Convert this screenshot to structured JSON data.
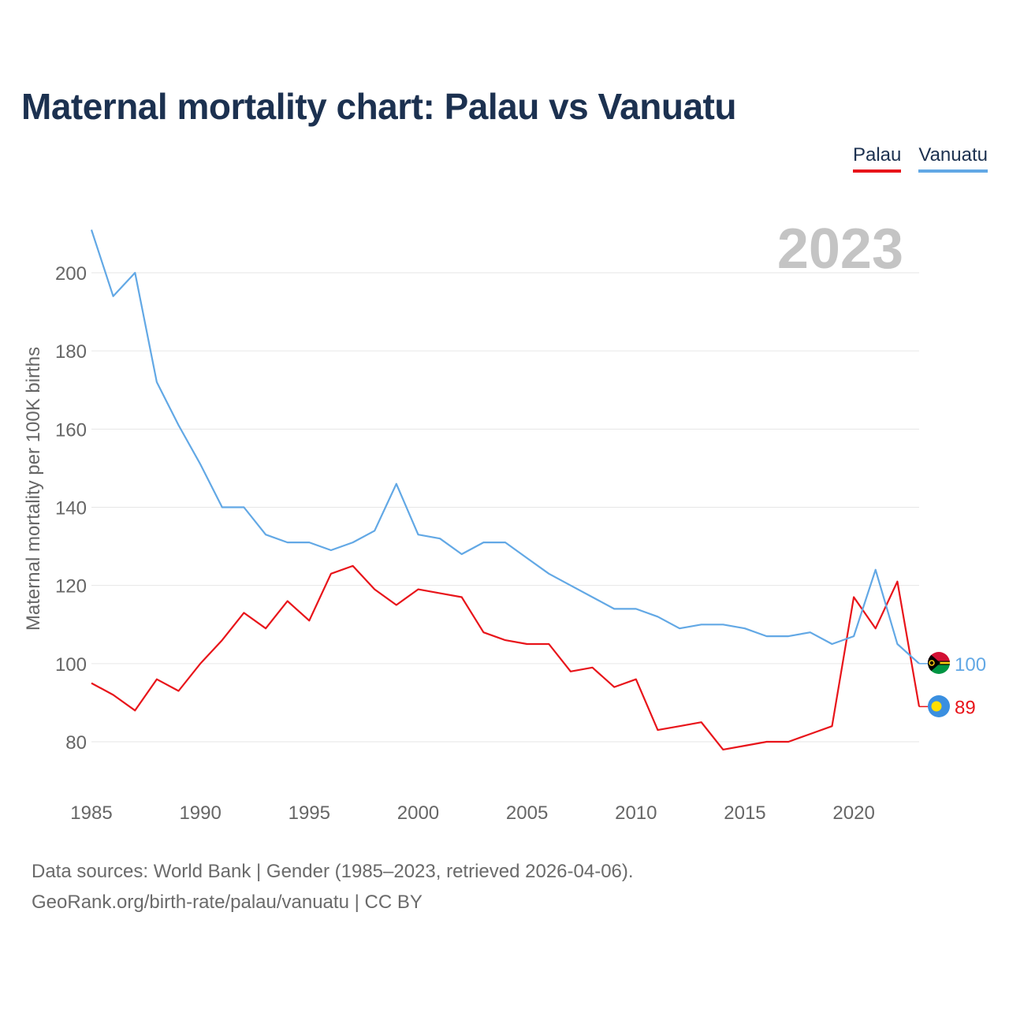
{
  "title": "Maternal mortality chart: Palau vs Vanuatu",
  "legend": {
    "palau": "Palau",
    "vanuatu": "Vanuatu"
  },
  "year_overlay": "2023",
  "source": {
    "line1": "Data sources: World Bank | Gender (1985–2023, retrieved 2026-04-06).",
    "line2": "GeoRank.org/birth-rate/palau/vanuatu | CC BY"
  },
  "colors": {
    "palau": "#e8141a",
    "vanuatu": "#62a8e5",
    "grid": "#e6e6e6",
    "axis_text": "#666666"
  },
  "chart_data": {
    "type": "line",
    "title": "Maternal mortality chart: Palau vs Vanuatu",
    "xlabel": "",
    "ylabel": "Maternal mortality per 100K births",
    "xlim": [
      1985,
      2023
    ],
    "ylim": [
      70,
      215
    ],
    "x_ticks": [
      1985,
      1990,
      1995,
      2000,
      2005,
      2010,
      2015,
      2020
    ],
    "y_ticks": [
      80,
      100,
      120,
      140,
      160,
      180,
      200
    ],
    "x": [
      1985,
      1986,
      1987,
      1988,
      1989,
      1990,
      1991,
      1992,
      1993,
      1994,
      1995,
      1996,
      1997,
      1998,
      1999,
      2000,
      2001,
      2002,
      2003,
      2004,
      2005,
      2006,
      2007,
      2008,
      2009,
      2010,
      2011,
      2012,
      2013,
      2014,
      2015,
      2016,
      2017,
      2018,
      2019,
      2020,
      2021,
      2022,
      2023
    ],
    "series": [
      {
        "name": "Palau",
        "color": "#e8141a",
        "end_label": "89",
        "values": [
          95,
          92,
          88,
          96,
          93,
          100,
          106,
          113,
          109,
          116,
          111,
          123,
          125,
          119,
          115,
          119,
          118,
          117,
          108,
          106,
          105,
          105,
          98,
          99,
          94,
          96,
          83,
          84,
          85,
          78,
          79,
          80,
          80,
          82,
          84,
          117,
          109,
          121,
          89
        ]
      },
      {
        "name": "Vanuatu",
        "color": "#62a8e5",
        "end_label": "100",
        "values": [
          211,
          194,
          200,
          172,
          161,
          151,
          140,
          140,
          133,
          131,
          131,
          129,
          131,
          134,
          146,
          133,
          132,
          128,
          131,
          131,
          127,
          123,
          120,
          117,
          114,
          114,
          112,
          109,
          110,
          110,
          109,
          107,
          107,
          108,
          105,
          107,
          124,
          105,
          100
        ]
      }
    ]
  }
}
